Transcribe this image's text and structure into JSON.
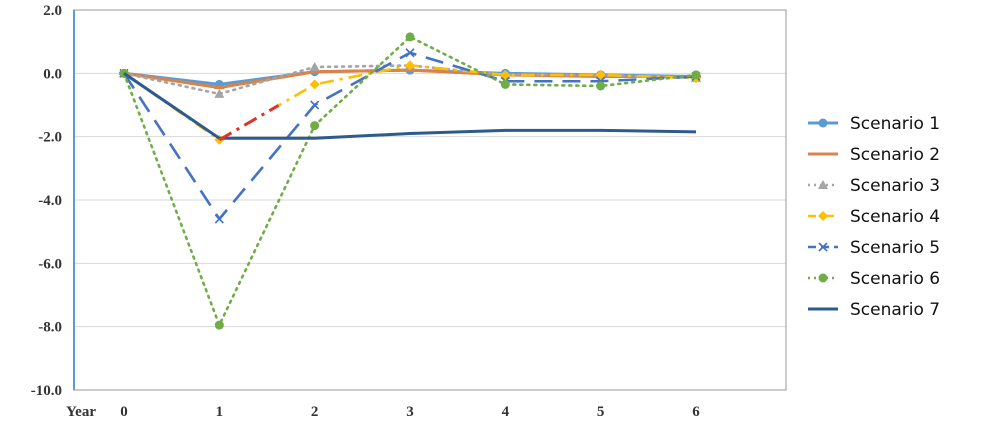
{
  "chart_data": {
    "type": "line",
    "title": "",
    "xlabel": "Year",
    "ylabel": "",
    "x": [
      0,
      1,
      2,
      3,
      4,
      5,
      6
    ],
    "ylim": [
      -10.0,
      2.0
    ],
    "yticks": [
      "2.0",
      "0.0",
      "-2.0",
      "-4.0",
      "-6.0",
      "-8.0",
      "-10.0"
    ],
    "xticks": [
      "0",
      "1",
      "2",
      "3",
      "4",
      "5",
      "6"
    ],
    "grid": "horizontal",
    "legend_position": "right",
    "series": [
      {
        "name": "Scenario 1",
        "color": "#5b9bd5",
        "dash": "solid",
        "marker": "circle",
        "values": [
          0,
          -0.35,
          0.05,
          0.1,
          0,
          -0.05,
          -0.1
        ]
      },
      {
        "name": "Scenario 2",
        "color": "#d9834b",
        "dash": "solid",
        "marker": "dash",
        "values": [
          0,
          -0.45,
          0.05,
          0.1,
          -0.05,
          -0.1,
          -0.1
        ]
      },
      {
        "name": "Scenario 3",
        "color": "#a5a5a5",
        "dash": "dot",
        "marker": "triangle",
        "values": [
          0,
          -0.65,
          0.2,
          0.25,
          -0.05,
          -0.05,
          -0.15
        ]
      },
      {
        "name": "Scenario 4",
        "color": "#ffc000",
        "dash": "dashdot",
        "marker": "diamond",
        "values": [
          0,
          -2.1,
          -0.35,
          0.25,
          -0.05,
          -0.05,
          -0.15
        ]
      },
      {
        "name": "Scenario 5",
        "color": "#4472c4",
        "dash": "longdash",
        "marker": "x",
        "values": [
          0,
          -4.6,
          -1.0,
          0.65,
          -0.25,
          -0.25,
          -0.1
        ]
      },
      {
        "name": "Scenario 6",
        "color": "#70ad47",
        "dash": "dot",
        "marker": "circle",
        "values": [
          0,
          -7.95,
          -1.65,
          1.15,
          -0.35,
          -0.4,
          -0.05
        ]
      },
      {
        "name": "Scenario 7",
        "color": "#2e5b8f",
        "dash": "solid",
        "marker": "none",
        "values": [
          0,
          -2.05,
          -2.05,
          -1.9,
          -1.8,
          -1.8,
          -1.85
        ]
      }
    ],
    "annotations": [
      {
        "segment": "Scenario 4, year 1 to 2",
        "color": "#e0312b",
        "dash": "dashdot"
      }
    ]
  }
}
